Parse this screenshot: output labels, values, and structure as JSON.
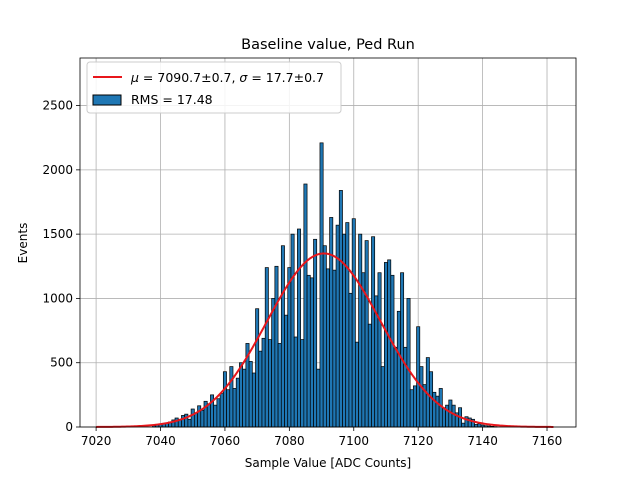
{
  "chart_data": {
    "type": "bar",
    "title": "Baseline value, Ped Run",
    "xlabel": "Sample Value [ADC Counts]",
    "ylabel": "Events",
    "xlim": [
      7015,
      7169
    ],
    "ylim": [
      0,
      2870
    ],
    "xticks": [
      7020,
      7040,
      7060,
      7080,
      7100,
      7120,
      7140,
      7160
    ],
    "yticks": [
      0,
      500,
      1000,
      1500,
      2000,
      2500
    ],
    "grid": true,
    "legend_position": "top-left",
    "colors": {
      "bar_fill": "#1f77b4",
      "bar_edge": "#000000",
      "fit_line": "#e8161b",
      "grid": "#b0b0b0"
    },
    "series": [
      {
        "name": "RMS = 17.48",
        "kind": "histogram",
        "bin_width": 1,
        "x": [
          7038,
          7039,
          7040,
          7041,
          7042,
          7043,
          7044,
          7045,
          7046,
          7047,
          7048,
          7049,
          7050,
          7051,
          7052,
          7053,
          7054,
          7055,
          7056,
          7057,
          7058,
          7059,
          7060,
          7061,
          7062,
          7063,
          7064,
          7065,
          7066,
          7067,
          7068,
          7069,
          7070,
          7071,
          7072,
          7073,
          7074,
          7075,
          7076,
          7077,
          7078,
          7079,
          7080,
          7081,
          7082,
          7083,
          7084,
          7085,
          7086,
          7087,
          7088,
          7089,
          7090,
          7091,
          7092,
          7093,
          7094,
          7095,
          7096,
          7097,
          7098,
          7099,
          7100,
          7101,
          7102,
          7103,
          7104,
          7105,
          7106,
          7107,
          7108,
          7109,
          7110,
          7111,
          7112,
          7113,
          7114,
          7115,
          7116,
          7117,
          7118,
          7119,
          7120,
          7121,
          7122,
          7123,
          7124,
          7125,
          7126,
          7127,
          7128,
          7129,
          7130,
          7131,
          7132,
          7133,
          7134,
          7135,
          7136,
          7137,
          7138,
          7139,
          7140,
          7141,
          7142,
          7143,
          7144
        ],
        "values": [
          10,
          15,
          20,
          25,
          30,
          40,
          55,
          70,
          60,
          90,
          100,
          60,
          140,
          110,
          165,
          130,
          200,
          180,
          250,
          170,
          220,
          260,
          430,
          290,
          470,
          300,
          380,
          500,
          450,
          650,
          510,
          420,
          920,
          590,
          690,
          1240,
          680,
          1000,
          1250,
          650,
          1410,
          870,
          1240,
          1500,
          700,
          1540,
          680,
          1890,
          1180,
          1160,
          1460,
          450,
          2210,
          1410,
          1230,
          1630,
          1220,
          1570,
          1840,
          1500,
          1590,
          1040,
          1620,
          660,
          1500,
          1200,
          1450,
          800,
          1480,
          1020,
          1200,
          470,
          1280,
          1300,
          1180,
          620,
          900,
          1200,
          620,
          1000,
          290,
          320,
          780,
          470,
          330,
          540,
          430,
          270,
          240,
          300,
          150,
          170,
          210,
          170,
          110,
          150,
          30,
          80,
          70,
          60,
          20,
          25,
          15,
          10,
          8,
          5,
          3
        ]
      },
      {
        "name": "$\\mu = 7090.7{\\pm}0.7$, $\\sigma = 17.7{\\pm}0.7$",
        "kind": "gaussian_fit",
        "mu": 7090.7,
        "sigma": 17.7,
        "amplitude": 1350,
        "x_range": [
          7020,
          7162
        ]
      }
    ]
  }
}
